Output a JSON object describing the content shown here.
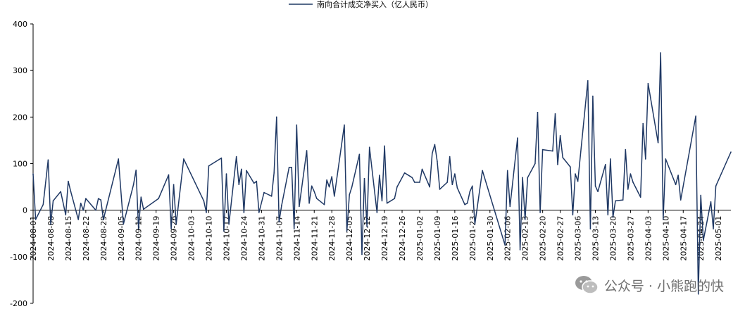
{
  "chart_data": {
    "type": "line",
    "series": [
      {
        "name": "南向合计成交净买入（亿人民币）",
        "color": "#1f3864"
      }
    ],
    "ylim": [
      -200,
      400
    ],
    "yticks": [
      -200,
      -100,
      0,
      100,
      200,
      300,
      400
    ],
    "xtick_labels": [
      "2024-08-01",
      "2024-08-08",
      "2024-08-15",
      "2024-08-22",
      "2024-08-29",
      "2024-09-05",
      "2024-09-12",
      "2024-09-19",
      "2024-09-26",
      "2024-10-03",
      "2024-10-10",
      "2024-10-17",
      "2024-10-24",
      "2024-10-31",
      "2024-11-07",
      "2024-11-14",
      "2024-11-21",
      "2024-11-28",
      "2024-12-05",
      "2024-12-12",
      "2024-12-19",
      "2024-12-26",
      "2025-01-02",
      "2025-01-09",
      "2025-01-16",
      "2025-01-23",
      "2025-01-30",
      "2025-02-06",
      "2025-02-13",
      "2025-02-20",
      "2025-02-27",
      "2025-03-06",
      "2025-03-13",
      "2025-03-20",
      "2025-03-27",
      "2025-04-03",
      "2025-04-10",
      "2025-04-17",
      "2025-04-24",
      "2025-05-01"
    ],
    "x_start": "2024-08-01",
    "x_end": "2025-05-06",
    "points": [
      [
        "2024-08-01",
        78
      ],
      [
        "2024-08-02",
        -20
      ],
      [
        "2024-08-05",
        12
      ],
      [
        "2024-08-07",
        108
      ],
      [
        "2024-08-08",
        -30
      ],
      [
        "2024-08-09",
        20
      ],
      [
        "2024-08-12",
        40
      ],
      [
        "2024-08-14",
        -10
      ],
      [
        "2024-08-15",
        62
      ],
      [
        "2024-08-16",
        40
      ],
      [
        "2024-08-19",
        -20
      ],
      [
        "2024-08-20",
        15
      ],
      [
        "2024-08-21",
        0
      ],
      [
        "2024-08-22",
        25
      ],
      [
        "2024-08-26",
        0
      ],
      [
        "2024-08-27",
        25
      ],
      [
        "2024-08-28",
        22
      ],
      [
        "2024-08-29",
        -20
      ],
      [
        "2024-09-04",
        110
      ],
      [
        "2024-09-06",
        -30
      ],
      [
        "2024-09-10",
        55
      ],
      [
        "2024-09-11",
        86
      ],
      [
        "2024-09-12",
        -40
      ],
      [
        "2024-09-13",
        28
      ],
      [
        "2024-09-14",
        2
      ],
      [
        "2024-09-20",
        25
      ],
      [
        "2024-09-24",
        76
      ],
      [
        "2024-09-25",
        -40
      ],
      [
        "2024-09-26",
        55
      ],
      [
        "2024-09-27",
        -30
      ],
      [
        "2024-09-30",
        110
      ],
      [
        "2024-10-08",
        20
      ],
      [
        "2024-10-09",
        -5
      ],
      [
        "2024-10-10",
        95
      ],
      [
        "2024-10-15",
        112
      ],
      [
        "2024-10-16",
        -45
      ],
      [
        "2024-10-17",
        78
      ],
      [
        "2024-10-18",
        -30
      ],
      [
        "2024-10-21",
        115
      ],
      [
        "2024-10-22",
        55
      ],
      [
        "2024-10-23",
        88
      ],
      [
        "2024-10-24",
        -5
      ],
      [
        "2024-10-25",
        85
      ],
      [
        "2024-10-28",
        58
      ],
      [
        "2024-10-29",
        62
      ],
      [
        "2024-10-30",
        -5
      ],
      [
        "2024-11-01",
        38
      ],
      [
        "2024-11-04",
        30
      ],
      [
        "2024-11-05",
        80
      ],
      [
        "2024-11-06",
        200
      ],
      [
        "2024-11-07",
        -25
      ],
      [
        "2024-11-08",
        10
      ],
      [
        "2024-11-11",
        92
      ],
      [
        "2024-11-12",
        92
      ],
      [
        "2024-11-13",
        -40
      ],
      [
        "2024-11-14",
        183
      ],
      [
        "2024-11-15",
        8
      ],
      [
        "2024-11-18",
        128
      ],
      [
        "2024-11-19",
        15
      ],
      [
        "2024-11-20",
        52
      ],
      [
        "2024-11-21",
        40
      ],
      [
        "2024-11-22",
        25
      ],
      [
        "2024-11-25",
        12
      ],
      [
        "2024-11-26",
        65
      ],
      [
        "2024-11-27",
        50
      ],
      [
        "2024-11-28",
        72
      ],
      [
        "2024-11-29",
        30
      ],
      [
        "2024-12-03",
        183
      ],
      [
        "2024-12-04",
        -45
      ],
      [
        "2024-12-05",
        33
      ],
      [
        "2024-12-06",
        50
      ],
      [
        "2024-12-09",
        120
      ],
      [
        "2024-12-10",
        -95
      ],
      [
        "2024-12-11",
        68
      ],
      [
        "2024-12-12",
        -35
      ],
      [
        "2024-12-13",
        135
      ],
      [
        "2024-12-16",
        -5
      ],
      [
        "2024-12-17",
        75
      ],
      [
        "2024-12-18",
        20
      ],
      [
        "2024-12-19",
        138
      ],
      [
        "2024-12-20",
        15
      ],
      [
        "2024-12-23",
        25
      ],
      [
        "2024-12-24",
        50
      ],
      [
        "2024-12-27",
        80
      ],
      [
        "2024-12-30",
        70
      ],
      [
        "2024-12-31",
        60
      ],
      [
        "2025-01-02",
        60
      ],
      [
        "2025-01-03",
        88
      ],
      [
        "2025-01-06",
        50
      ],
      [
        "2025-01-07",
        122
      ],
      [
        "2025-01-08",
        141
      ],
      [
        "2025-01-09",
        105
      ],
      [
        "2025-01-10",
        45
      ],
      [
        "2025-01-13",
        60
      ],
      [
        "2025-01-14",
        115
      ],
      [
        "2025-01-15",
        55
      ],
      [
        "2025-01-16",
        78
      ],
      [
        "2025-01-17",
        48
      ],
      [
        "2025-01-20",
        12
      ],
      [
        "2025-01-21",
        15
      ],
      [
        "2025-01-22",
        40
      ],
      [
        "2025-01-23",
        52
      ],
      [
        "2025-01-24",
        -30
      ],
      [
        "2025-01-27",
        85
      ],
      [
        "2025-02-05",
        -75
      ],
      [
        "2025-02-06",
        85
      ],
      [
        "2025-02-07",
        8
      ],
      [
        "2025-02-10",
        155
      ],
      [
        "2025-02-11",
        -85
      ],
      [
        "2025-02-12",
        70
      ],
      [
        "2025-02-13",
        -20
      ],
      [
        "2025-02-14",
        70
      ],
      [
        "2025-02-17",
        100
      ],
      [
        "2025-02-18",
        210
      ],
      [
        "2025-02-19",
        -5
      ],
      [
        "2025-02-20",
        130
      ],
      [
        "2025-02-24",
        127
      ],
      [
        "2025-02-25",
        207
      ],
      [
        "2025-02-26",
        98
      ],
      [
        "2025-02-27",
        160
      ],
      [
        "2025-02-28",
        113
      ],
      [
        "2025-03-03",
        93
      ],
      [
        "2025-03-04",
        -10
      ],
      [
        "2025-03-05",
        78
      ],
      [
        "2025-03-06",
        62
      ],
      [
        "2025-03-10",
        278
      ],
      [
        "2025-03-11",
        -40
      ],
      [
        "2025-03-12",
        245
      ],
      [
        "2025-03-13",
        52
      ],
      [
        "2025-03-14",
        40
      ],
      [
        "2025-03-17",
        98
      ],
      [
        "2025-03-18",
        -10
      ],
      [
        "2025-03-19",
        110
      ],
      [
        "2025-03-20",
        -15
      ],
      [
        "2025-03-21",
        20
      ],
      [
        "2025-03-24",
        22
      ],
      [
        "2025-03-25",
        130
      ],
      [
        "2025-03-26",
        45
      ],
      [
        "2025-03-27",
        78
      ],
      [
        "2025-03-28",
        60
      ],
      [
        "2025-03-31",
        28
      ],
      [
        "2025-04-01",
        186
      ],
      [
        "2025-04-02",
        110
      ],
      [
        "2025-04-03",
        272
      ],
      [
        "2025-04-07",
        145
      ],
      [
        "2025-04-08",
        338
      ],
      [
        "2025-04-09",
        -20
      ],
      [
        "2025-04-10",
        110
      ],
      [
        "2025-04-14",
        55
      ],
      [
        "2025-04-15",
        75
      ],
      [
        "2025-04-16",
        22
      ],
      [
        "2025-04-22",
        202
      ],
      [
        "2025-04-23",
        -180
      ],
      [
        "2025-04-24",
        32
      ],
      [
        "2025-04-25",
        -65
      ],
      [
        "2025-04-28",
        18
      ],
      [
        "2025-04-29",
        -40
      ],
      [
        "2025-04-30",
        52
      ],
      [
        "2025-05-06",
        125
      ]
    ]
  },
  "watermark": {
    "text": "公众号 · 小熊跑的快",
    "icon": "wechat-icon"
  }
}
